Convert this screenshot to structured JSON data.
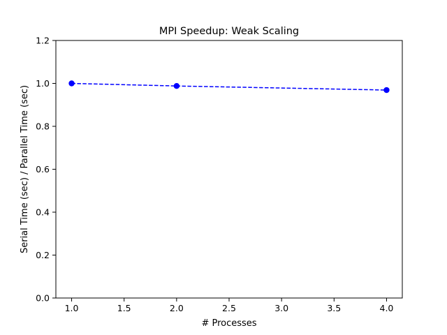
{
  "chart_data": {
    "type": "line",
    "title": "MPI Speedup: Weak Scaling",
    "xlabel": "# Processes",
    "ylabel": "Serial Time (sec) / Parallel Time (sec)",
    "xlim": [
      0.85,
      4.15
    ],
    "ylim": [
      0,
      1.2
    ],
    "xticks": [
      1.0,
      1.5,
      2.0,
      2.5,
      3.0,
      3.5,
      4.0
    ],
    "xtick_labels": [
      "1.0",
      "1.5",
      "2.0",
      "2.5",
      "3.0",
      "3.5",
      "4.0"
    ],
    "yticks": [
      0.0,
      0.2,
      0.4,
      0.6,
      0.8,
      1.0,
      1.2
    ],
    "ytick_labels": [
      "0.0",
      "0.2",
      "0.4",
      "0.6",
      "0.8",
      "1.0",
      "1.2"
    ],
    "grid": false,
    "series": [
      {
        "x": [
          1,
          2,
          4
        ],
        "y": [
          1.0,
          0.988,
          0.969
        ],
        "color": "#0000ff",
        "line_style": "dashed",
        "marker": "circle"
      }
    ]
  }
}
